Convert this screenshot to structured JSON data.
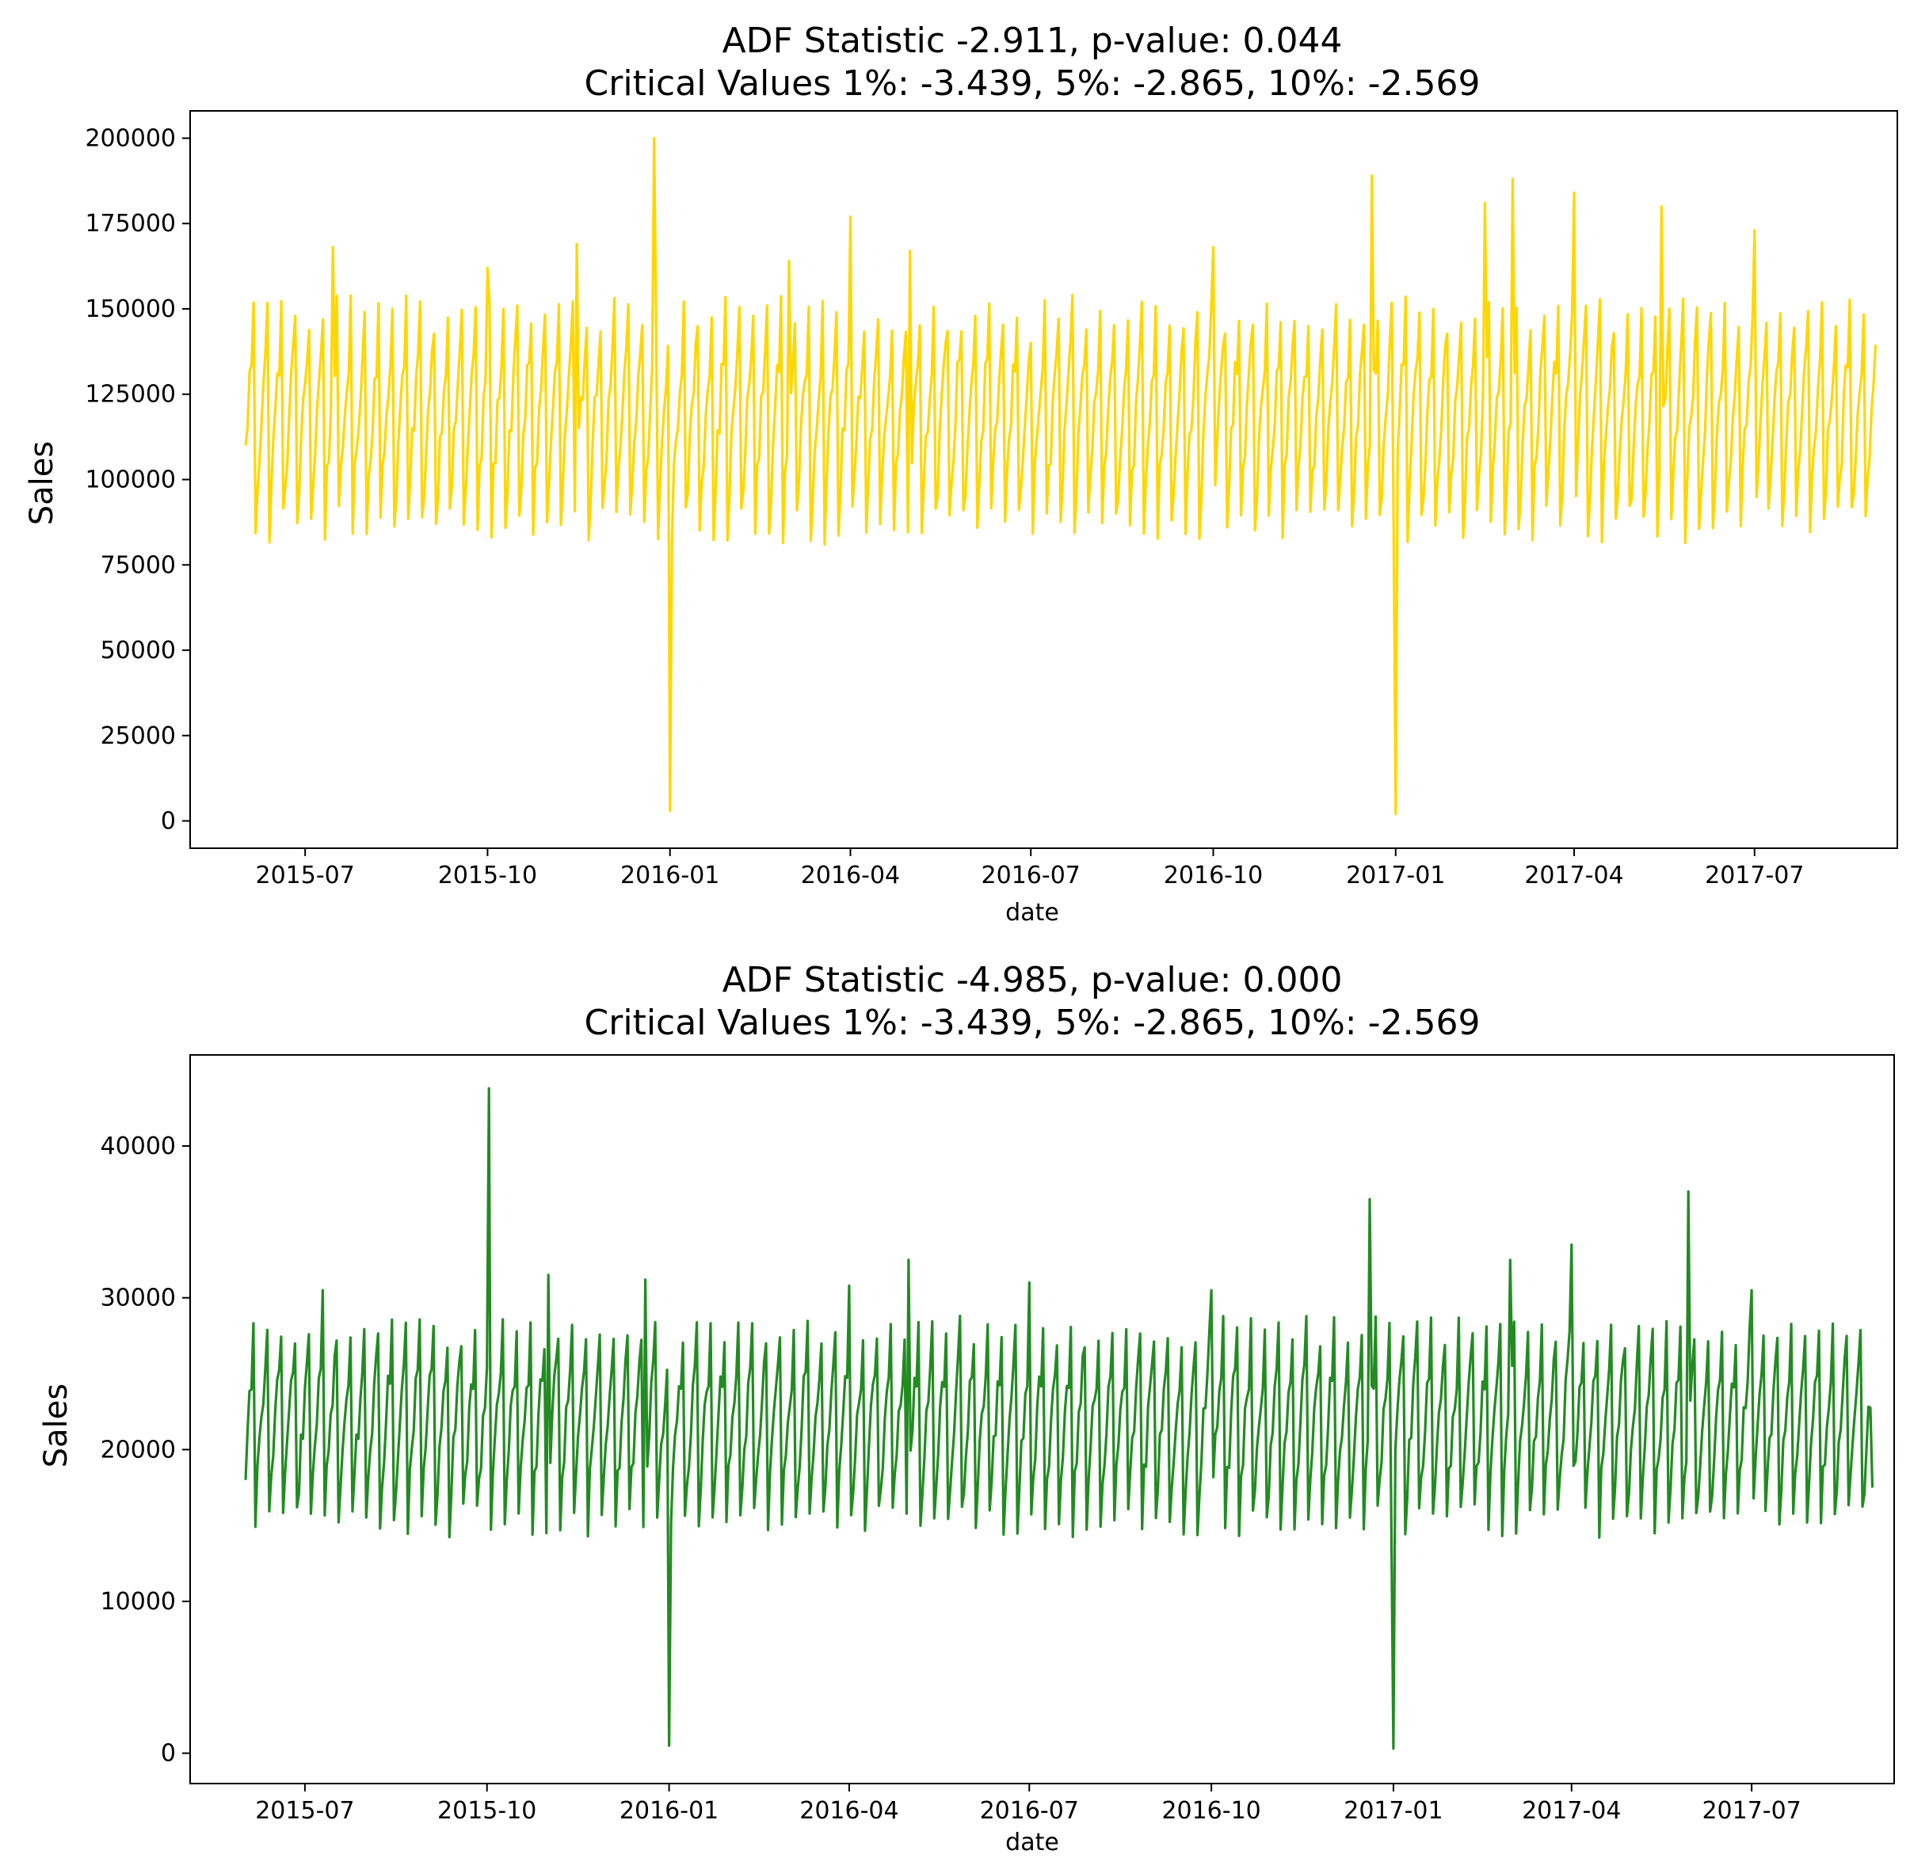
{
  "chart_data": [
    {
      "type": "line",
      "title": [
        "ADF Statistic -2.911, p-value: 0.044",
        "Critical Values 1%: -3.439, 5%: -2.865, 10%: -2.569"
      ],
      "xlabel": "date",
      "ylabel": "Sales",
      "color": "#FFD700",
      "xlim": [
        "2015-05-04",
        "2017-09-11"
      ],
      "ylim": [
        -8000,
        208000
      ],
      "x_ticks": [
        {
          "value": "2015-07-01",
          "label": "2015-07"
        },
        {
          "value": "2015-10-01",
          "label": "2015-10"
        },
        {
          "value": "2016-01-01",
          "label": "2016-01"
        },
        {
          "value": "2016-04-01",
          "label": "2016-04"
        },
        {
          "value": "2016-07-01",
          "label": "2016-07"
        },
        {
          "value": "2016-10-01",
          "label": "2016-10"
        },
        {
          "value": "2017-01-01",
          "label": "2017-01"
        },
        {
          "value": "2017-04-01",
          "label": "2017-04"
        },
        {
          "value": "2017-07-01",
          "label": "2017-07"
        }
      ],
      "y_ticks": [
        0,
        25000,
        50000,
        75000,
        100000,
        125000,
        150000,
        175000,
        200000
      ],
      "grid": false,
      "series": [
        {
          "x_start": "2015-06-01",
          "x_end": "2017-08-31",
          "frequency": "daily",
          "approx_weekly_range": [
            85000,
            150000
          ],
          "values_sampled_weekly": [
            {
              "x": "2015-06-01",
              "y": 110000
            },
            {
              "x": "2015-07-15",
              "y": 168000
            },
            {
              "x": "2015-10-01",
              "y": 162000
            },
            {
              "x": "2015-11-15",
              "y": 169000
            },
            {
              "x": "2015-12-24",
              "y": 200000
            },
            {
              "x": "2016-01-01",
              "y": 3000
            },
            {
              "x": "2016-03-01",
              "y": 164000
            },
            {
              "x": "2016-04-01",
              "y": 177000
            },
            {
              "x": "2016-05-01",
              "y": 167000
            },
            {
              "x": "2016-07-01",
              "y": 140000
            },
            {
              "x": "2016-10-01",
              "y": 168000
            },
            {
              "x": "2016-12-20",
              "y": 189000
            },
            {
              "x": "2017-01-01",
              "y": 2000
            },
            {
              "x": "2017-02-15",
              "y": 181000
            },
            {
              "x": "2017-03-01",
              "y": 188000
            },
            {
              "x": "2017-04-01",
              "y": 184000
            },
            {
              "x": "2017-05-15",
              "y": 180000
            },
            {
              "x": "2017-07-01",
              "y": 173000
            },
            {
              "x": "2017-08-15",
              "y": 125000
            }
          ]
        }
      ]
    },
    {
      "type": "line",
      "title": [
        "ADF Statistic -4.985, p-value: 0.000",
        "Critical Values 1%: -3.439, 5%: -2.865, 10%: -2.569"
      ],
      "xlabel": "date",
      "ylabel": "Sales",
      "color": "#228B22",
      "xlim": [
        "2015-05-04",
        "2017-09-11"
      ],
      "ylim": [
        -2000,
        46000
      ],
      "x_ticks": [
        {
          "value": "2015-07-01",
          "label": "2015-07"
        },
        {
          "value": "2015-10-01",
          "label": "2015-10"
        },
        {
          "value": "2016-01-01",
          "label": "2016-01"
        },
        {
          "value": "2016-04-01",
          "label": "2016-04"
        },
        {
          "value": "2016-07-01",
          "label": "2016-07"
        },
        {
          "value": "2016-10-01",
          "label": "2016-10"
        },
        {
          "value": "2017-01-01",
          "label": "2017-01"
        },
        {
          "value": "2017-04-01",
          "label": "2017-04"
        },
        {
          "value": "2017-07-01",
          "label": "2017-07"
        }
      ],
      "y_ticks": [
        0,
        10000,
        20000,
        30000,
        40000
      ],
      "grid": false,
      "series": [
        {
          "x_start": "2015-06-01",
          "x_end": "2017-08-31",
          "frequency": "daily",
          "approx_weekly_range": [
            15000,
            28000
          ],
          "values_sampled_weekly": [
            {
              "x": "2015-06-01",
              "y": 18000
            },
            {
              "x": "2015-07-10",
              "y": 30500
            },
            {
              "x": "2015-10-02",
              "y": 43800
            },
            {
              "x": "2015-11-01",
              "y": 31500
            },
            {
              "x": "2015-12-20",
              "y": 31200
            },
            {
              "x": "2016-01-01",
              "y": 500
            },
            {
              "x": "2016-04-01",
              "y": 30800
            },
            {
              "x": "2016-05-01",
              "y": 32500
            },
            {
              "x": "2016-07-01",
              "y": 31000
            },
            {
              "x": "2016-10-01",
              "y": 30500
            },
            {
              "x": "2016-12-20",
              "y": 36500
            },
            {
              "x": "2017-01-01",
              "y": 300
            },
            {
              "x": "2017-03-01",
              "y": 32500
            },
            {
              "x": "2017-04-01",
              "y": 33500
            },
            {
              "x": "2017-05-30",
              "y": 37000
            },
            {
              "x": "2017-07-01",
              "y": 30500
            },
            {
              "x": "2017-08-31",
              "y": 17500
            }
          ]
        }
      ]
    }
  ]
}
